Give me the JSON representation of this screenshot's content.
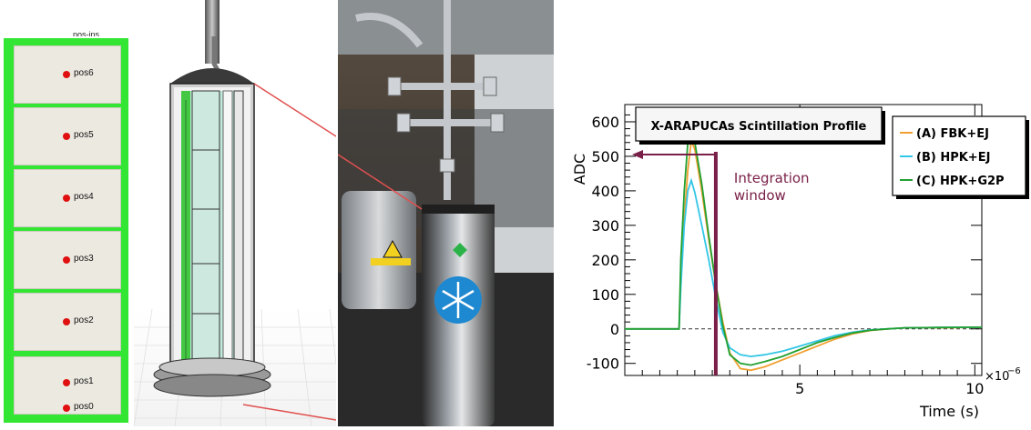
{
  "panel_a": {
    "header": "pos-ins",
    "positions": [
      "pos6",
      "pos5",
      "pos4",
      "pos3",
      "pos2",
      "pos1",
      "pos0"
    ]
  },
  "chart_data": {
    "type": "line",
    "title": "X-ARAPUCAs Scintillation Profile",
    "ylabel": "ADC",
    "xlabel": "Time (s)",
    "x_multiplier": "×10",
    "x_multiplier_exp": "−6",
    "xlim": [
      0,
      10.2
    ],
    "ylim": [
      -135,
      650
    ],
    "x_unit_scale": 1e-06,
    "xticks": [
      5,
      10
    ],
    "yticks": [
      -100,
      0,
      100,
      200,
      300,
      400,
      500,
      600
    ],
    "grid": false,
    "legend_position": "top-right",
    "annotation": {
      "text_line1": "Integration",
      "text_line2": "window",
      "x_end": 2.6,
      "color": "#7a2048"
    },
    "series": [
      {
        "name": "(A) FBK+EJ",
        "color": "#f0a030",
        "x": [
          0,
          1.55,
          1.6,
          1.7,
          1.8,
          1.9,
          2.0,
          2.2,
          2.4,
          2.6,
          2.8,
          3.0,
          3.3,
          3.6,
          4.0,
          4.5,
          5.0,
          5.5,
          6.0,
          6.5,
          7.0,
          7.5,
          8.0,
          9.0,
          10.2
        ],
        "y": [
          0,
          0,
          150,
          320,
          460,
          545,
          520,
          400,
          260,
          130,
          20,
          -70,
          -115,
          -120,
          -110,
          -90,
          -70,
          -50,
          -30,
          -15,
          -5,
          0,
          3,
          3,
          5
        ]
      },
      {
        "name": "(B) HPK+EJ",
        "color": "#33c6e6",
        "x": [
          0,
          1.55,
          1.6,
          1.7,
          1.8,
          1.9,
          2.0,
          2.2,
          2.4,
          2.6,
          2.8,
          3.0,
          3.3,
          3.6,
          4.0,
          4.5,
          5.0,
          5.5,
          6.0,
          6.5,
          7.0,
          7.5,
          8.0,
          9.0,
          10.2
        ],
        "y": [
          0,
          0,
          120,
          300,
          400,
          430,
          395,
          300,
          200,
          90,
          -10,
          -55,
          -75,
          -80,
          -75,
          -65,
          -50,
          -35,
          -20,
          -10,
          -3,
          0,
          3,
          4,
          5
        ]
      },
      {
        "name": "(C) HPK+G2P",
        "color": "#22a032",
        "x": [
          0,
          1.55,
          1.6,
          1.7,
          1.8,
          1.9,
          2.0,
          2.2,
          2.4,
          2.6,
          2.8,
          3.0,
          3.3,
          3.6,
          4.0,
          4.5,
          5.0,
          5.5,
          6.0,
          6.5,
          7.0,
          7.5,
          8.0,
          9.0,
          10.2
        ],
        "y": [
          0,
          0,
          200,
          400,
          540,
          575,
          540,
          420,
          270,
          130,
          10,
          -75,
          -100,
          -105,
          -95,
          -80,
          -60,
          -40,
          -25,
          -12,
          -4,
          0,
          3,
          4,
          5
        ]
      }
    ]
  }
}
